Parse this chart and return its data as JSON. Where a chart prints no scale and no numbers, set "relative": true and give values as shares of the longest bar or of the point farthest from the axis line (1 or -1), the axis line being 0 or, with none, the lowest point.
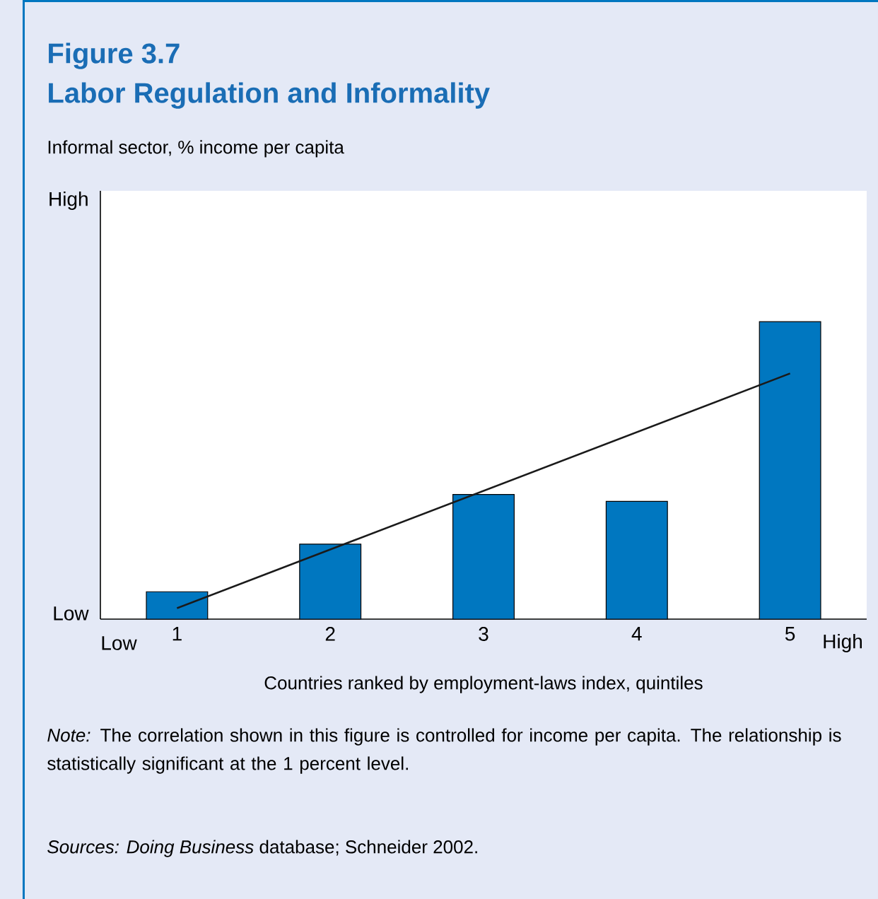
{
  "chart_data": {
    "type": "bar",
    "title": "Figure 3.7",
    "subtitle": "Labor Regulation and Informality",
    "xlabel": "Countries ranked by employment-laws index, quintiles",
    "categories": [
      "1",
      "2",
      "3",
      "4",
      "5"
    ],
    "relative": true,
    "series": [
      {
        "color": "#0077c0",
        "values": [
          0.092,
          0.252,
          0.419,
          0.396,
          1.0
        ]
      },
      {
        "type": "line",
        "color": "#1a1a1a",
        "x": [
          "1",
          "5"
        ],
        "values": [
          0.037,
          0.826
        ]
      }
    ],
    "annotations": [
      "*Note:* The correlation shown in this figure is controlled for income per capita. The relationship is statistically significant at the 1 percent level.",
      "*Sources: Doing Business* database; Schneider 2002.",
      "Low",
      "High",
      "Low",
      "High",
      "Informal sector, % income per capita"
    ]
  }
}
